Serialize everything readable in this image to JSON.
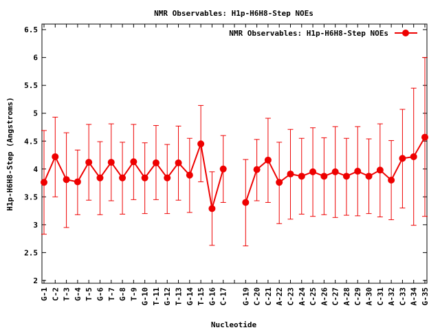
{
  "chart_data": {
    "type": "line",
    "title": "NMR Observables: H1p-H6H8-Step NOEs",
    "xlabel": "Nucleotide",
    "ylabel": "H1p-H6H8-Step (Angstroms)",
    "ylim": [
      1.95,
      6.6
    ],
    "yticks": [
      "2",
      "2.5",
      "3",
      "3.5",
      "4",
      "4.5",
      "5",
      "5.5",
      "6",
      "6.5"
    ],
    "grid": false,
    "legend_position": "top-right",
    "series_color": "#ee0000",
    "categories": [
      "G-1",
      "C-2",
      "T-3",
      "G-4",
      "T-5",
      "G-6",
      "T-7",
      "G-8",
      "T-9",
      "G-10",
      "T-11",
      "G-12",
      "T-13",
      "G-14",
      "T-15",
      "G-16",
      "C-17",
      "",
      "G-19",
      "C-20",
      "C-21",
      "A-22",
      "C-23",
      "A-24",
      "C-25",
      "A-26",
      "C-27",
      "A-28",
      "C-29",
      "A-30",
      "C-31",
      "A-32",
      "C-33",
      "A-34",
      "G-35"
    ],
    "series": [
      {
        "name": "NMR Observables: H1p-H6H8-Step NOEs",
        "values": [
          3.76,
          4.22,
          3.81,
          3.77,
          4.12,
          3.84,
          4.12,
          3.84,
          4.13,
          3.84,
          4.11,
          3.84,
          4.11,
          3.89,
          4.45,
          3.29,
          4.0,
          null,
          3.4,
          3.99,
          4.16,
          3.76,
          3.91,
          3.87,
          3.95,
          3.87,
          3.95,
          3.87,
          3.96,
          3.87,
          3.98,
          3.8,
          4.19,
          4.22,
          4.57
        ],
        "err_low": [
          2.83,
          3.5,
          2.95,
          3.18,
          3.44,
          3.18,
          3.43,
          3.19,
          3.45,
          3.2,
          3.45,
          3.2,
          3.44,
          3.22,
          3.77,
          2.63,
          3.4,
          null,
          2.62,
          3.43,
          3.4,
          3.02,
          3.1,
          3.19,
          3.15,
          3.18,
          3.13,
          3.17,
          3.16,
          3.2,
          3.14,
          3.09,
          3.3,
          2.99,
          3.15
        ],
        "err_high": [
          4.69,
          4.93,
          4.65,
          4.34,
          4.8,
          4.49,
          4.81,
          4.48,
          4.8,
          4.47,
          4.78,
          4.44,
          4.77,
          4.55,
          5.14,
          3.95,
          4.6,
          null,
          4.17,
          4.53,
          4.91,
          4.48,
          4.71,
          4.55,
          4.74,
          4.56,
          4.76,
          4.55,
          4.76,
          4.54,
          4.81,
          4.51,
          5.07,
          5.45,
          6.0
        ]
      }
    ]
  }
}
